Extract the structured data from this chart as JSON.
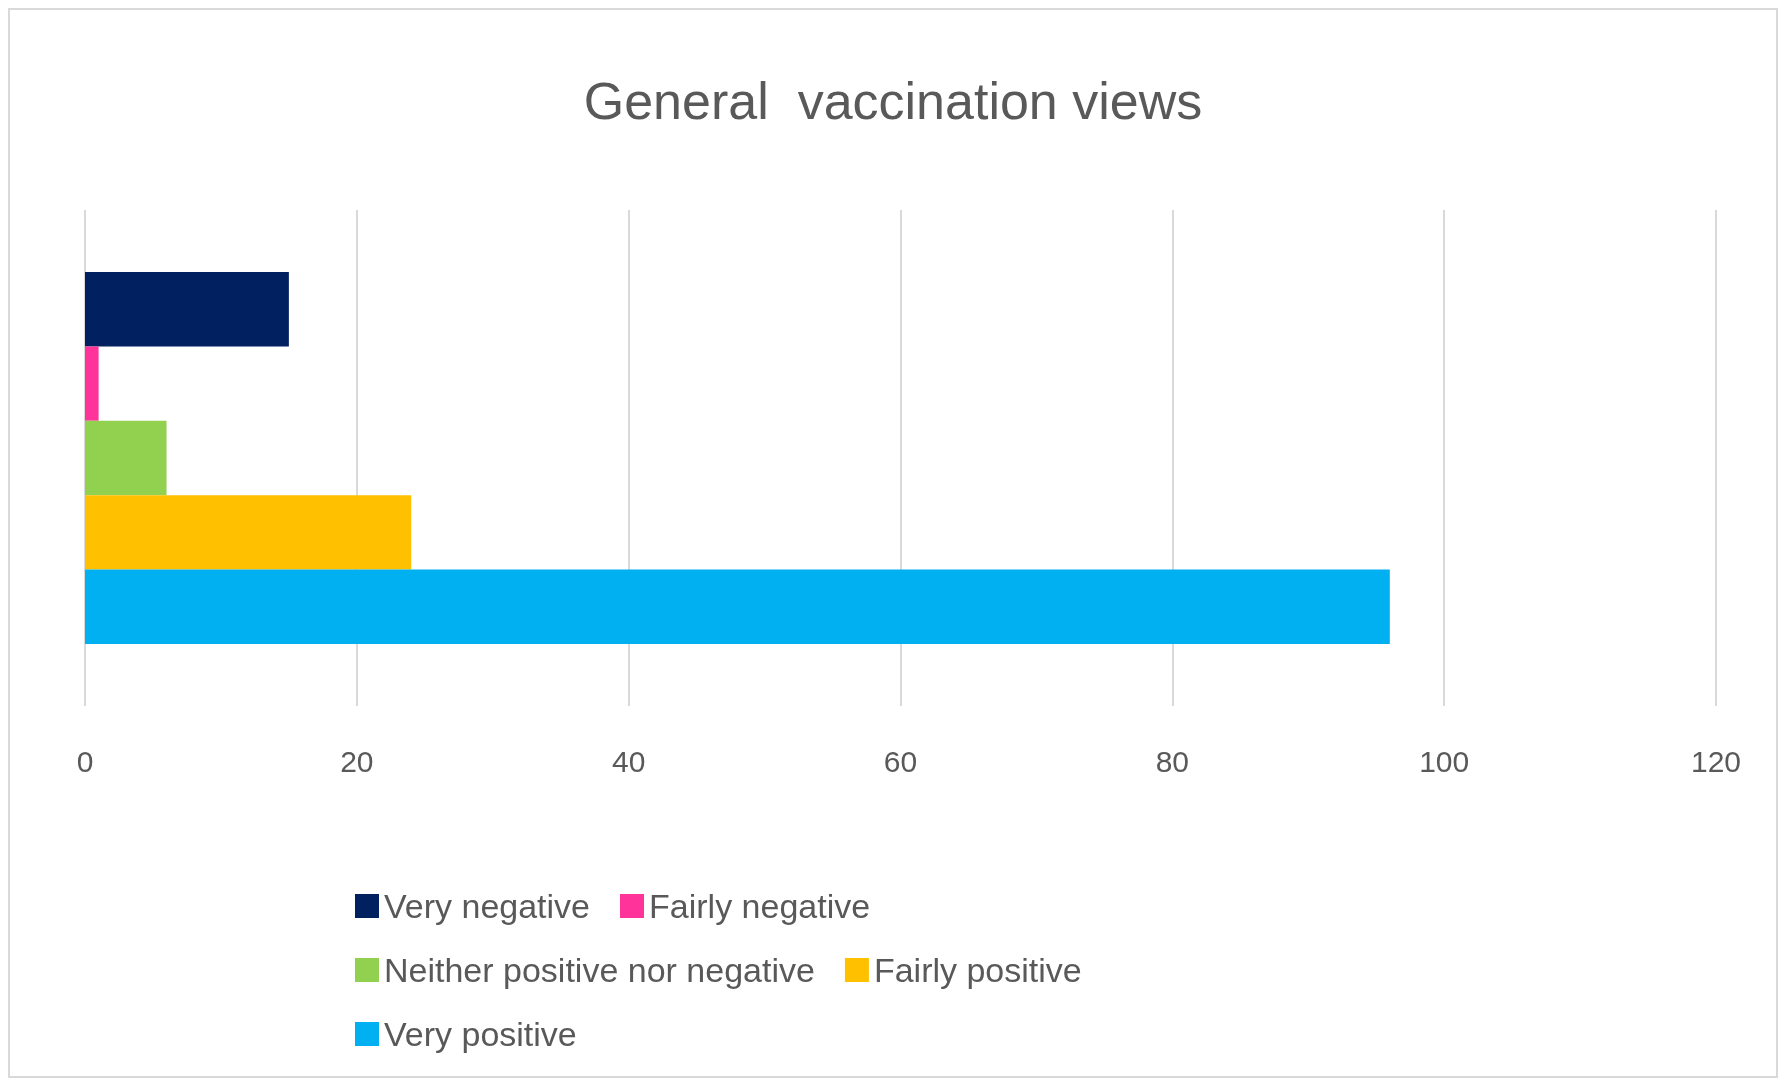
{
  "chart_data": {
    "type": "bar",
    "orientation": "horizontal",
    "title": "General  vaccination views",
    "categories": [
      null
    ],
    "series": [
      {
        "name": "Very negative",
        "color": "#002060",
        "values": [
          15
        ]
      },
      {
        "name": "Fairly negative",
        "color": "#ff3399",
        "values": [
          1
        ]
      },
      {
        "name": "Neither positive nor negative",
        "color": "#92d050",
        "values": [
          6
        ]
      },
      {
        "name": "Fairly positive",
        "color": "#ffc000",
        "values": [
          24
        ]
      },
      {
        "name": "Very positive",
        "color": "#00b0f0",
        "values": [
          96
        ]
      }
    ],
    "xlim": [
      0,
      120
    ],
    "xticks": [
      0,
      20,
      40,
      60,
      80,
      100,
      120
    ],
    "grid": "x",
    "legend": "bottom"
  }
}
